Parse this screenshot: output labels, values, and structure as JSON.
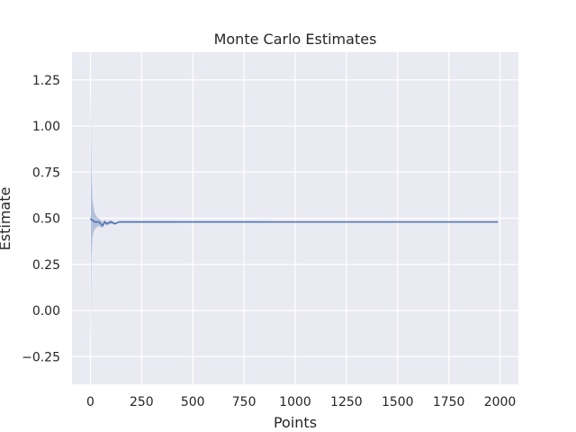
{
  "chart_data": {
    "type": "line",
    "title": "Monte Carlo Estimates",
    "xlabel": "Points",
    "ylabel": "Estimate",
    "xlim": [
      -90,
      2090
    ],
    "ylim": [
      -0.4,
      1.4
    ],
    "xticks": [
      0,
      250,
      500,
      750,
      1000,
      1250,
      1500,
      1750,
      2000
    ],
    "yticks": [
      -0.25,
      0.0,
      0.25,
      0.5,
      0.75,
      1.0,
      1.25
    ],
    "xtick_labels": [
      "0",
      "250",
      "500",
      "750",
      "1000",
      "1250",
      "1500",
      "1750",
      "2000"
    ],
    "ytick_labels": [
      "−0.25",
      "0.00",
      "0.25",
      "0.50",
      "0.75",
      "1.00",
      "1.25"
    ],
    "grid": true,
    "legend": "none",
    "colors": {
      "background": "#eaeaf2",
      "grid": "#ffffff",
      "line": "#4c72b0",
      "band": "#4c72b0"
    },
    "series": [
      {
        "x": [
          1,
          5,
          10,
          20,
          30,
          40,
          50,
          60,
          70,
          80,
          100,
          120,
          140,
          160,
          180,
          200,
          250,
          300,
          400,
          500,
          600,
          700,
          800,
          900,
          1000,
          1100,
          1200,
          1300,
          1400,
          1500,
          1600,
          1700,
          1800,
          1900,
          1990
        ],
        "y": [
          0.5,
          0.49,
          0.49,
          0.48,
          0.48,
          0.48,
          0.47,
          0.46,
          0.48,
          0.47,
          0.48,
          0.47,
          0.48,
          0.48,
          0.48,
          0.48,
          0.48,
          0.48,
          0.48,
          0.48,
          0.48,
          0.48,
          0.48,
          0.48,
          0.48,
          0.48,
          0.48,
          0.48,
          0.48,
          0.48,
          0.48,
          0.48,
          0.48,
          0.48,
          0.48
        ],
        "lower": [
          -0.2,
          0.3,
          0.4,
          0.44,
          0.45,
          0.46,
          0.45,
          0.45,
          0.47,
          0.46,
          0.47,
          0.465,
          0.475,
          0.475,
          0.475,
          0.475,
          0.475,
          0.475,
          0.475,
          0.476,
          0.476,
          0.476,
          0.476,
          0.477,
          0.477,
          0.477,
          0.477,
          0.477,
          0.477,
          0.477,
          0.477,
          0.477,
          0.477,
          0.477,
          0.477
        ],
        "upper": [
          1.2,
          0.75,
          0.6,
          0.53,
          0.51,
          0.5,
          0.49,
          0.48,
          0.49,
          0.48,
          0.49,
          0.475,
          0.485,
          0.485,
          0.485,
          0.485,
          0.485,
          0.485,
          0.485,
          0.484,
          0.484,
          0.484,
          0.484,
          0.483,
          0.483,
          0.483,
          0.483,
          0.483,
          0.483,
          0.483,
          0.483,
          0.483,
          0.483,
          0.483,
          0.483
        ]
      }
    ]
  }
}
